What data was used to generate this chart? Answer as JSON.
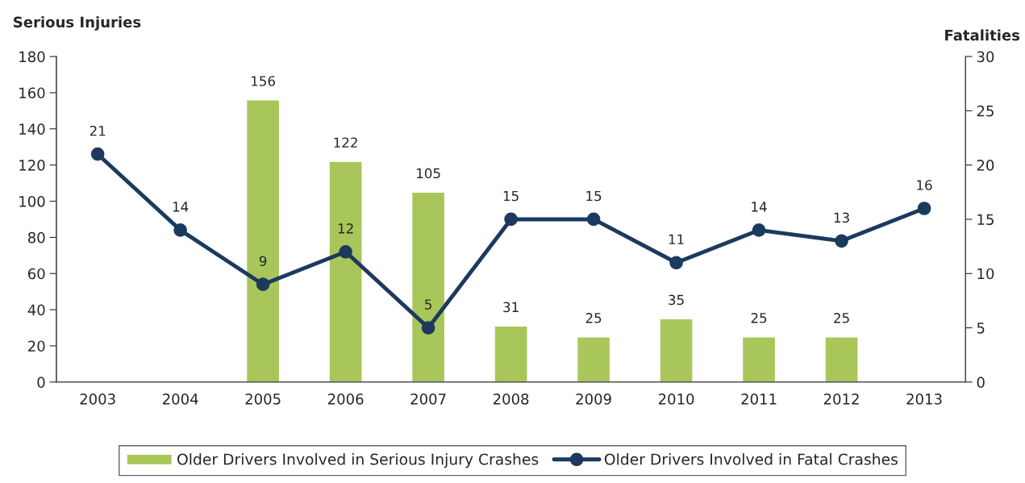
{
  "chart_data": {
    "type": "bar",
    "categories": [
      "2003",
      "2004",
      "2005",
      "2006",
      "2007",
      "2008",
      "2009",
      "2010",
      "2011",
      "2012",
      "2013"
    ],
    "ylabel": "Serious Injuries",
    "y2label": "Fatalities",
    "series": [
      {
        "name": "Older Drivers Involved in Serious Injury Crashes",
        "color": "#a9c65a",
        "values": [
          null,
          null,
          156,
          122,
          105,
          31,
          25,
          35,
          25,
          25,
          null
        ]
      },
      {
        "name": "Older Drivers Involved in Fatal Crashes",
        "type": "line",
        "axis": "y2",
        "color": "#1c3a5e",
        "marker": "circle",
        "line_style": "solid",
        "values": [
          21,
          14,
          9,
          12,
          5,
          15,
          15,
          11,
          14,
          13,
          16
        ]
      }
    ],
    "ylim": [
      0,
      180
    ],
    "yticks": [
      0,
      20,
      40,
      60,
      80,
      100,
      120,
      140,
      160,
      180
    ],
    "y2lim": [
      0,
      30
    ],
    "y2ticks": [
      0,
      5,
      10,
      15,
      20,
      25,
      30
    ],
    "data_labels": true,
    "grid": false,
    "legend": "bottom"
  }
}
